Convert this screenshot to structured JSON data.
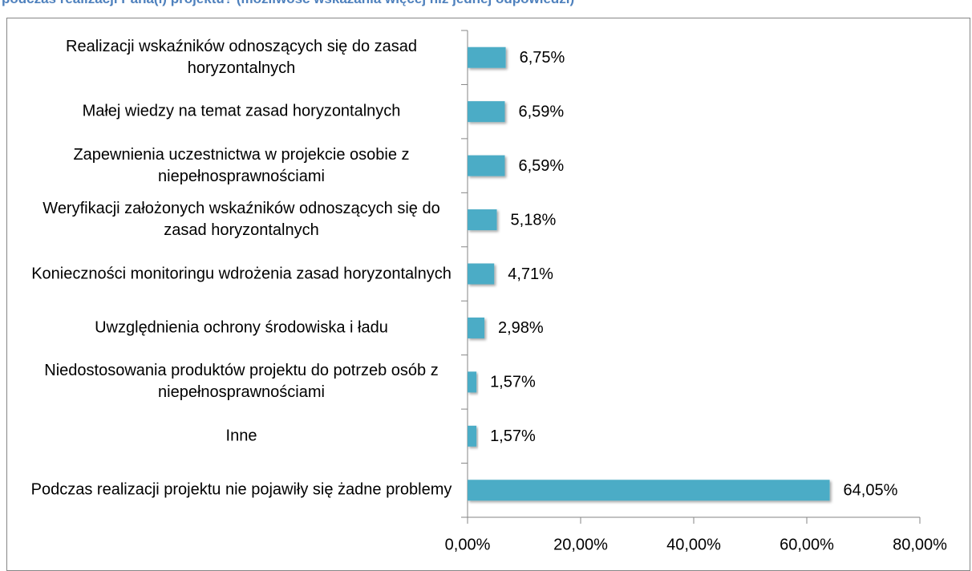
{
  "chart_data": {
    "type": "bar",
    "orientation": "horizontal",
    "title": "podczas realizacji Pana(i) projektu? (możliwość wskazania więcej niż jednej odpowiedzi)",
    "categories": [
      "Realizacji wskaźników odnoszących się do zasad horyzontalnych",
      "Małej wiedzy na temat zasad horyzontalnych",
      "Zapewnienia uczestnictwa w projekcie osobie z niepełnosprawnościami",
      "Weryfikacji założonych wskaźników odnoszących się do zasad horyzontalnych",
      "Konieczności monitoringu wdrożenia zasad horyzontalnych",
      "Uwzględnienia ochrony środowiska i ładu",
      "Niedostosowania produktów projektu do potrzeb osób z niepełnosprawnościami",
      "Inne",
      "Podczas realizacji projektu nie pojawiły się żadne problemy"
    ],
    "values": [
      6.75,
      6.59,
      6.59,
      5.18,
      4.71,
      2.98,
      1.57,
      1.57,
      64.05
    ],
    "value_labels": [
      "6,75%",
      "6,59%",
      "6,59%",
      "5,18%",
      "4,71%",
      "2,98%",
      "1,57%",
      "1,57%",
      "64,05%"
    ],
    "color": "#4bacc6",
    "xlim": [
      0,
      80
    ],
    "xticks": [
      {
        "value": 0,
        "label": "0,00%"
      },
      {
        "value": 20,
        "label": "20,00%"
      },
      {
        "value": 40,
        "label": "40,00%"
      },
      {
        "value": 60,
        "label": "60,00%"
      },
      {
        "value": 80,
        "label": "80,00%"
      }
    ],
    "grid": false
  }
}
